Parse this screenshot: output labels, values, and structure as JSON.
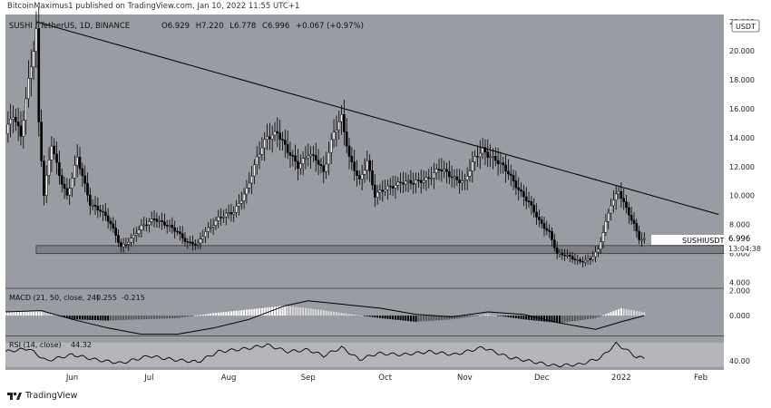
{
  "header": {
    "publish_line": "BitcoinMaximus1 published on TradingView.com, Jan 10, 2022 11:55 UTC+1",
    "symbol": "SUSHI / TetherUS, 1D, BINANCE",
    "ohlc": {
      "o_label": "O",
      "o": "6.929",
      "h_label": "H",
      "h": "7.220",
      "l_label": "L",
      "l": "6.778",
      "c_label": "C",
      "c": "6.996",
      "change": "+0.067 (+0.97%)"
    },
    "currency_badge": "USDT"
  },
  "footer": {
    "brand": "TradingView"
  },
  "colors": {
    "background": "#9a9ca3",
    "axis_bg": "#ffffff",
    "candle_up": "#ffffff",
    "candle_down": "#000000",
    "trendline": "#000000",
    "support_zone": "#7e8086",
    "rsi_band": "#b4b6bc"
  },
  "chart_data": [
    {
      "type": "candlestick",
      "title": "SUSHI / TetherUS, 1D, BINANCE",
      "x_tick_labels": [
        "Jun",
        "Jul",
        "Aug",
        "Sep",
        "Oct",
        "Nov",
        "Dec",
        "2022",
        "Feb"
      ],
      "y_tick_labels": [
        "22.000",
        "20.000",
        "18.000",
        "16.000",
        "14.000",
        "12.000",
        "10.000",
        "8.000",
        "6.000",
        "4.000"
      ],
      "ylim": [
        3.6,
        22.5
      ],
      "price_label": {
        "symbol": "SUSHIUSDT",
        "value": "6.996",
        "countdown": "13:04:38"
      },
      "x_range": [
        "2021-05-06",
        "2022-02-10"
      ],
      "closes": [
        [
          "2021-05-06",
          14.5
        ],
        [
          "2021-05-09",
          15.5
        ],
        [
          "2021-05-12",
          14.0
        ],
        [
          "2021-05-15",
          18.0
        ],
        [
          "2021-05-18",
          21.5
        ],
        [
          "2021-05-19",
          15.0
        ],
        [
          "2021-05-21",
          10.0
        ],
        [
          "2021-05-24",
          13.5
        ],
        [
          "2021-05-27",
          11.5
        ],
        [
          "2021-05-30",
          10.0
        ],
        [
          "2021-06-03",
          12.5
        ],
        [
          "2021-06-08",
          9.5
        ],
        [
          "2021-06-12",
          9.0
        ],
        [
          "2021-06-16",
          8.0
        ],
        [
          "2021-06-20",
          6.5
        ],
        [
          "2021-06-24",
          7.0
        ],
        [
          "2021-06-28",
          7.8
        ],
        [
          "2021-07-03",
          8.5
        ],
        [
          "2021-07-07",
          8.0
        ],
        [
          "2021-07-12",
          7.5
        ],
        [
          "2021-07-16",
          6.8
        ],
        [
          "2021-07-20",
          6.6
        ],
        [
          "2021-07-23",
          7.5
        ],
        [
          "2021-07-28",
          8.5
        ],
        [
          "2021-08-03",
          8.8
        ],
        [
          "2021-08-08",
          10.5
        ],
        [
          "2021-08-12",
          12.5
        ],
        [
          "2021-08-16",
          14.0
        ],
        [
          "2021-08-20",
          14.5
        ],
        [
          "2021-08-24",
          13.0
        ],
        [
          "2021-08-28",
          12.0
        ],
        [
          "2021-09-01",
          13.0
        ],
        [
          "2021-09-04",
          12.5
        ],
        [
          "2021-09-07",
          11.5
        ],
        [
          "2021-09-11",
          14.5
        ],
        [
          "2021-09-14",
          15.5
        ],
        [
          "2021-09-17",
          12.5
        ],
        [
          "2021-09-21",
          11.0
        ],
        [
          "2021-09-24",
          12.5
        ],
        [
          "2021-09-27",
          10.0
        ],
        [
          "2021-10-02",
          10.5
        ],
        [
          "2021-10-07",
          11.0
        ],
        [
          "2021-10-12",
          10.8
        ],
        [
          "2021-10-17",
          11.2
        ],
        [
          "2021-10-22",
          11.8
        ],
        [
          "2021-10-27",
          11.3
        ],
        [
          "2021-11-01",
          11.0
        ],
        [
          "2021-11-05",
          12.5
        ],
        [
          "2021-11-08",
          13.2
        ],
        [
          "2021-11-13",
          12.5
        ],
        [
          "2021-11-18",
          11.5
        ],
        [
          "2021-11-22",
          10.5
        ],
        [
          "2021-11-26",
          9.5
        ],
        [
          "2021-11-30",
          8.2
        ],
        [
          "2021-12-04",
          7.5
        ],
        [
          "2021-12-07",
          6.0
        ],
        [
          "2021-12-11",
          5.8
        ],
        [
          "2021-12-16",
          5.5
        ],
        [
          "2021-12-20",
          5.6
        ],
        [
          "2021-12-23",
          6.2
        ],
        [
          "2021-12-25",
          7.5
        ],
        [
          "2021-12-28",
          9.5
        ],
        [
          "2021-12-31",
          10.3
        ],
        [
          "2022-01-03",
          9.0
        ],
        [
          "2022-01-06",
          8.0
        ],
        [
          "2022-01-08",
          7.1
        ],
        [
          "2022-01-10",
          6.996
        ]
      ],
      "trendline": [
        [
          "2021-05-18",
          22.0
        ],
        [
          "2022-02-08",
          8.7
        ]
      ],
      "support_zone": [
        6.0,
        6.55
      ]
    },
    {
      "type": "line",
      "title": "MACD (21, 50, close, 24)",
      "values_text": [
        "0.255",
        "-0.215"
      ],
      "y_tick_labels": [
        "2.000",
        "0.000"
      ],
      "ylim": [
        -1.6,
        2.2
      ],
      "macd": [
        [
          "2021-05-06",
          0.3
        ],
        [
          "2021-05-20",
          0.4
        ],
        [
          "2021-06-01",
          -0.3
        ],
        [
          "2021-06-15",
          -1.0
        ],
        [
          "2021-06-28",
          -1.5
        ],
        [
          "2021-07-12",
          -1.5
        ],
        [
          "2021-07-26",
          -1.0
        ],
        [
          "2021-08-09",
          -0.3
        ],
        [
          "2021-08-23",
          0.8
        ],
        [
          "2021-09-01",
          1.2
        ],
        [
          "2021-09-15",
          0.9
        ],
        [
          "2021-09-29",
          0.6
        ],
        [
          "2021-10-13",
          0.1
        ],
        [
          "2021-10-27",
          -0.1
        ],
        [
          "2021-11-10",
          0.3
        ],
        [
          "2021-11-24",
          0.1
        ],
        [
          "2021-12-08",
          -0.6
        ],
        [
          "2021-12-22",
          -1.1
        ],
        [
          "2022-01-01",
          -0.5
        ],
        [
          "2022-01-10",
          0.0
        ]
      ],
      "histogram": [
        [
          "2021-05-06",
          0.3
        ],
        [
          "2021-05-20",
          0.4
        ],
        [
          "2021-06-01",
          -0.3
        ],
        [
          "2021-06-15",
          -0.4
        ],
        [
          "2021-06-28",
          -0.3
        ],
        [
          "2021-07-12",
          -0.2
        ],
        [
          "2021-07-26",
          0.2
        ],
        [
          "2021-08-09",
          0.5
        ],
        [
          "2021-08-23",
          0.8
        ],
        [
          "2021-09-01",
          0.6
        ],
        [
          "2021-09-15",
          0.2
        ],
        [
          "2021-09-29",
          -0.2
        ],
        [
          "2021-10-13",
          -0.5
        ],
        [
          "2021-10-27",
          -0.3
        ],
        [
          "2021-11-10",
          0.1
        ],
        [
          "2021-11-24",
          -0.3
        ],
        [
          "2021-12-08",
          -0.6
        ],
        [
          "2021-12-22",
          -0.2
        ],
        [
          "2022-01-01",
          0.6
        ],
        [
          "2022-01-10",
          0.26
        ]
      ]
    },
    {
      "type": "line",
      "title": "RSI (14, close)",
      "value_text": "44.32",
      "y_tick_labels": [
        "40.00"
      ],
      "ylim": [
        25,
        80
      ],
      "band": [
        30,
        70
      ],
      "values": [
        [
          "2021-05-06",
          55
        ],
        [
          "2021-05-15",
          60
        ],
        [
          "2021-05-22",
          40
        ],
        [
          "2021-06-01",
          50
        ],
        [
          "2021-06-10",
          42
        ],
        [
          "2021-06-20",
          36
        ],
        [
          "2021-07-01",
          48
        ],
        [
          "2021-07-10",
          42
        ],
        [
          "2021-07-20",
          38
        ],
        [
          "2021-07-28",
          55
        ],
        [
          "2021-08-08",
          60
        ],
        [
          "2021-08-16",
          66
        ],
        [
          "2021-08-24",
          55
        ],
        [
          "2021-09-01",
          58
        ],
        [
          "2021-09-07",
          48
        ],
        [
          "2021-09-14",
          62
        ],
        [
          "2021-09-21",
          42
        ],
        [
          "2021-09-28",
          52
        ],
        [
          "2021-10-08",
          50
        ],
        [
          "2021-10-18",
          55
        ],
        [
          "2021-10-28",
          50
        ],
        [
          "2021-11-08",
          62
        ],
        [
          "2021-11-18",
          46
        ],
        [
          "2021-11-28",
          38
        ],
        [
          "2021-12-06",
          32
        ],
        [
          "2021-12-16",
          34
        ],
        [
          "2021-12-24",
          45
        ],
        [
          "2021-12-30",
          68
        ],
        [
          "2022-01-03",
          58
        ],
        [
          "2022-01-07",
          46
        ],
        [
          "2022-01-10",
          44.32
        ]
      ]
    }
  ]
}
